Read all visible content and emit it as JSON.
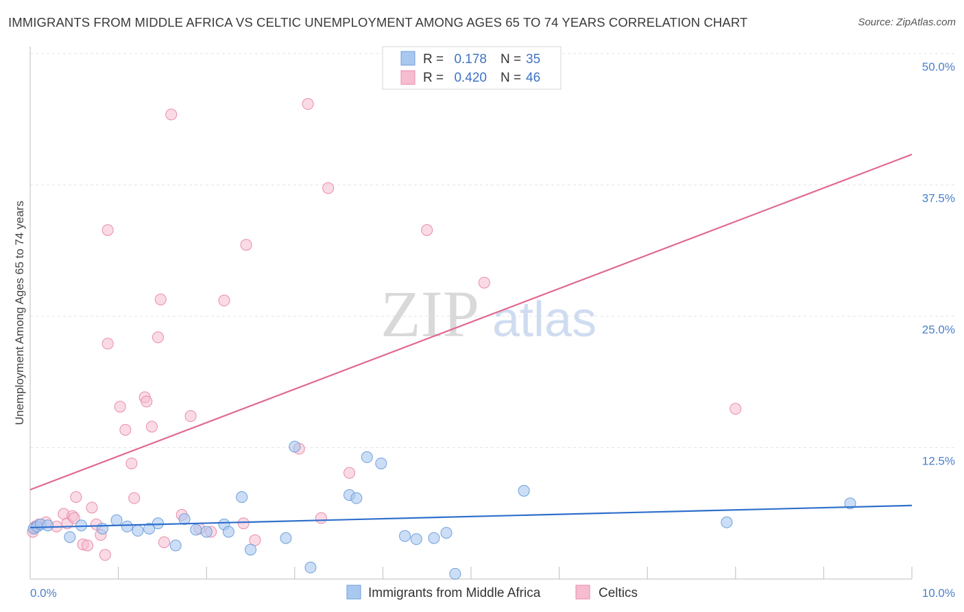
{
  "header": {
    "title": "IMMIGRANTS FROM MIDDLE AFRICA VS CELTIC UNEMPLOYMENT AMONG AGES 65 TO 74 YEARS CORRELATION CHART",
    "source": "Source: ZipAtlas.com"
  },
  "watermark": {
    "zip": "ZIP",
    "atlas": "atlas"
  },
  "legend_box": {
    "rows": [
      {
        "r_label": "R =",
        "r_value": "0.178",
        "n_label": "N =",
        "n_value": "35"
      },
      {
        "r_label": "R =",
        "r_value": "0.420",
        "n_label": "N =",
        "n_value": "46"
      }
    ]
  },
  "colors": {
    "blue_fill": "#a9c8f0",
    "blue_stroke": "#6f9fdc",
    "blue_line": "#2f6fcc",
    "pink_fill": "#f6bdd0",
    "pink_stroke": "#e98aaa",
    "pink_line": "#e06890",
    "grid": "#e3e3e3"
  },
  "chart_data": {
    "type": "scatter",
    "title": "IMMIGRANTS FROM MIDDLE AFRICA VS CELTIC UNEMPLOYMENT AMONG AGES 65 TO 74 YEARS CORRELATION CHART",
    "xlabel": "",
    "ylabel": "Unemployment Among Ages 65 to 74 years",
    "xlim": [
      0,
      10
    ],
    "ylim": [
      0,
      50
    ],
    "x_tick_labels": [
      "0.0%",
      "10.0%"
    ],
    "y_ticks": [
      12.5,
      25.0,
      37.5,
      50.0
    ],
    "y_tick_labels": [
      "12.5%",
      "25.0%",
      "37.5%",
      "50.0%"
    ],
    "grid": true,
    "legend_position": "bottom",
    "series": [
      {
        "name": "Immigrants from Middle Africa",
        "color": "#a9c8f0",
        "r": 0.178,
        "n": 35,
        "trend": {
          "x": [
            0,
            10
          ],
          "y": [
            4.9,
            7.0
          ]
        },
        "points": [
          [
            0.04,
            4.8
          ],
          [
            0.08,
            5.0
          ],
          [
            0.12,
            5.2
          ],
          [
            0.2,
            5.1
          ],
          [
            0.45,
            4.0
          ],
          [
            0.58,
            5.1
          ],
          [
            0.82,
            4.8
          ],
          [
            0.98,
            5.6
          ],
          [
            1.1,
            5.0
          ],
          [
            1.22,
            4.6
          ],
          [
            1.35,
            4.8
          ],
          [
            1.45,
            5.3
          ],
          [
            1.65,
            3.2
          ],
          [
            1.75,
            5.7
          ],
          [
            1.88,
            4.7
          ],
          [
            2.0,
            4.5
          ],
          [
            2.2,
            5.2
          ],
          [
            2.25,
            4.5
          ],
          [
            2.4,
            7.8
          ],
          [
            2.5,
            2.8
          ],
          [
            2.9,
            3.9
          ],
          [
            3.0,
            12.6
          ],
          [
            3.18,
            1.1
          ],
          [
            3.62,
            8.0
          ],
          [
            3.7,
            7.7
          ],
          [
            3.82,
            11.6
          ],
          [
            3.98,
            11.0
          ],
          [
            4.25,
            4.1
          ],
          [
            4.38,
            3.8
          ],
          [
            4.58,
            3.9
          ],
          [
            4.72,
            4.4
          ],
          [
            4.82,
            0.5
          ],
          [
            5.6,
            8.4
          ],
          [
            7.9,
            5.4
          ],
          [
            9.3,
            7.2
          ]
        ]
      },
      {
        "name": "Celtics",
        "color": "#f6bdd0",
        "r": 0.42,
        "n": 46,
        "trend": {
          "x": [
            0,
            10
          ],
          "y": [
            8.5,
            40.4
          ]
        },
        "points": [
          [
            0.03,
            4.5
          ],
          [
            0.06,
            5.0
          ],
          [
            0.1,
            5.2
          ],
          [
            0.18,
            5.4
          ],
          [
            0.3,
            5.0
          ],
          [
            0.38,
            6.2
          ],
          [
            0.42,
            5.3
          ],
          [
            0.48,
            6.0
          ],
          [
            0.5,
            5.8
          ],
          [
            0.52,
            7.8
          ],
          [
            0.6,
            3.3
          ],
          [
            0.65,
            3.2
          ],
          [
            0.7,
            6.8
          ],
          [
            0.75,
            5.2
          ],
          [
            0.8,
            4.2
          ],
          [
            0.85,
            2.3
          ],
          [
            0.88,
            33.2
          ],
          [
            0.88,
            22.4
          ],
          [
            1.02,
            16.4
          ],
          [
            1.08,
            14.2
          ],
          [
            1.15,
            11.0
          ],
          [
            1.18,
            7.7
          ],
          [
            1.3,
            17.3
          ],
          [
            1.32,
            16.9
          ],
          [
            1.38,
            14.5
          ],
          [
            1.45,
            23.0
          ],
          [
            1.48,
            26.6
          ],
          [
            1.52,
            3.5
          ],
          [
            1.6,
            44.2
          ],
          [
            1.72,
            6.1
          ],
          [
            1.82,
            15.5
          ],
          [
            1.92,
            4.8
          ],
          [
            2.05,
            4.5
          ],
          [
            2.2,
            26.5
          ],
          [
            2.42,
            5.3
          ],
          [
            2.45,
            31.8
          ],
          [
            2.55,
            3.7
          ],
          [
            3.05,
            12.4
          ],
          [
            3.15,
            45.2
          ],
          [
            3.3,
            5.8
          ],
          [
            3.38,
            37.2
          ],
          [
            3.62,
            10.1
          ],
          [
            4.5,
            33.2
          ],
          [
            5.15,
            28.2
          ],
          [
            8.0,
            16.2
          ],
          [
            0.05,
            4.9
          ]
        ]
      }
    ]
  },
  "bottom_legend": {
    "items": [
      {
        "label": "Immigrants from Middle Africa"
      },
      {
        "label": "Celtics"
      }
    ]
  }
}
